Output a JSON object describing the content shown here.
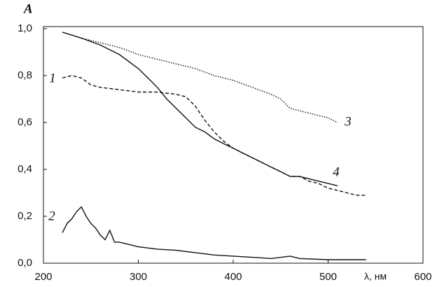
{
  "chart_data": {
    "type": "line",
    "y_label": "A",
    "x_label": "λ, нм",
    "xlim": [
      200,
      600
    ],
    "xticks": [
      200,
      300,
      400,
      500,
      600
    ],
    "ylim": [
      0,
      1
    ],
    "yticks": [
      {
        "value": 0,
        "label": "0,0"
      },
      {
        "value": 0.2,
        "label": "0,2"
      },
      {
        "value": 0.4,
        "label": "0,4"
      },
      {
        "value": 0.6,
        "label": "0,6"
      },
      {
        "value": 0.8,
        "label": "0,8"
      },
      {
        "value": 1,
        "label": "1,0"
      }
    ],
    "grid": false,
    "series": [
      {
        "name": "1",
        "color": "#111111",
        "style": "dashed",
        "x": [
          220,
          230,
          240,
          250,
          260,
          280,
          300,
          320,
          340,
          350,
          360,
          370,
          380,
          390,
          400,
          410,
          420,
          430,
          440,
          450,
          460,
          470,
          480,
          490,
          500,
          510,
          520,
          530,
          540
        ],
        "values": [
          0.79,
          0.8,
          0.79,
          0.76,
          0.75,
          0.74,
          0.73,
          0.73,
          0.72,
          0.71,
          0.67,
          0.61,
          0.56,
          0.52,
          0.49,
          0.47,
          0.45,
          0.43,
          0.41,
          0.39,
          0.37,
          0.37,
          0.35,
          0.34,
          0.32,
          0.31,
          0.3,
          0.29,
          0.29
        ]
      },
      {
        "name": "2",
        "color": "#111111",
        "style": "solid",
        "x": [
          220,
          225,
          230,
          235,
          240,
          245,
          250,
          255,
          260,
          265,
          270,
          275,
          280,
          290,
          300,
          320,
          340,
          360,
          380,
          400,
          420,
          440,
          460,
          470,
          500,
          540
        ],
        "values": [
          0.13,
          0.17,
          0.19,
          0.22,
          0.24,
          0.2,
          0.17,
          0.15,
          0.12,
          0.1,
          0.14,
          0.09,
          0.09,
          0.08,
          0.07,
          0.06,
          0.055,
          0.045,
          0.035,
          0.03,
          0.025,
          0.02,
          0.03,
          0.02,
          0.015,
          0.015
        ]
      },
      {
        "name": "3",
        "color": "#111111",
        "style": "dotted",
        "x": [
          220,
          240,
          260,
          280,
          300,
          320,
          340,
          360,
          380,
          400,
          420,
          440,
          450,
          460,
          480,
          500,
          510
        ],
        "values": [
          0.985,
          0.96,
          0.94,
          0.92,
          0.89,
          0.87,
          0.85,
          0.83,
          0.8,
          0.78,
          0.75,
          0.72,
          0.7,
          0.66,
          0.64,
          0.62,
          0.6
        ]
      },
      {
        "name": "4",
        "color": "#111111",
        "style": "solid",
        "x": [
          220,
          240,
          260,
          280,
          300,
          310,
          320,
          330,
          340,
          350,
          360,
          370,
          380,
          390,
          400,
          410,
          420,
          430,
          440,
          450,
          460,
          470,
          480,
          490,
          500,
          510
        ],
        "values": [
          0.985,
          0.96,
          0.93,
          0.89,
          0.83,
          0.79,
          0.75,
          0.7,
          0.66,
          0.62,
          0.58,
          0.56,
          0.53,
          0.51,
          0.49,
          0.47,
          0.45,
          0.43,
          0.41,
          0.39,
          0.37,
          0.37,
          0.36,
          0.35,
          0.34,
          0.33
        ]
      }
    ]
  }
}
